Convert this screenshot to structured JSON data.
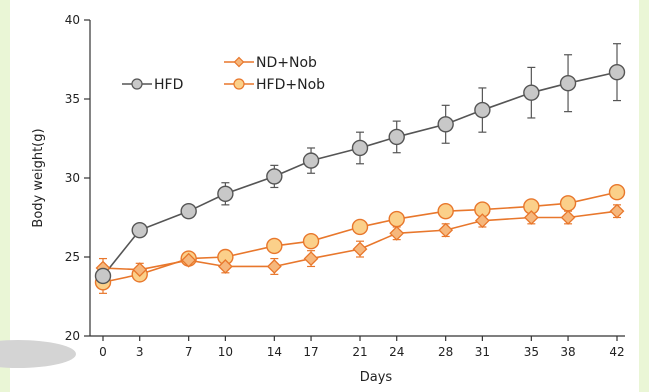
{
  "chart_data": {
    "type": "line",
    "xlabel": "Days",
    "ylabel": "Body weight(g)",
    "x": [
      0,
      3,
      7,
      10,
      14,
      17,
      21,
      24,
      28,
      31,
      35,
      38,
      42
    ],
    "xlim": [
      0,
      42
    ],
    "ylim": [
      20,
      40
    ],
    "yticks": [
      20,
      25,
      30,
      35,
      40
    ],
    "grid": false,
    "legend": [
      "HFD",
      "ND+Nob",
      "HFD+Nob"
    ],
    "series": [
      {
        "name": "HFD",
        "marker": "circle",
        "color": "#555555",
        "fill": "#c8c8c8",
        "values": [
          23.8,
          26.7,
          27.9,
          29.0,
          30.1,
          31.1,
          31.9,
          32.6,
          33.4,
          34.3,
          35.4,
          36.0,
          36.7
        ],
        "error": [
          0.3,
          0.3,
          0.3,
          0.7,
          0.7,
          0.8,
          1.0,
          1.0,
          1.2,
          1.4,
          1.6,
          1.8,
          1.8
        ]
      },
      {
        "name": "ND+Nob",
        "marker": "diamond",
        "color": "#e8772c",
        "fill": "#f6b77c",
        "values": [
          24.3,
          24.2,
          24.8,
          24.4,
          24.4,
          24.9,
          25.5,
          26.5,
          26.7,
          27.3,
          27.5,
          27.5,
          27.9
        ],
        "error": [
          0.6,
          0.4,
          0.3,
          0.4,
          0.5,
          0.5,
          0.5,
          0.4,
          0.4,
          0.4,
          0.4,
          0.4,
          0.4
        ]
      },
      {
        "name": "HFD+Nob",
        "marker": "circle",
        "color": "#e8772c",
        "fill": "#fbd08a",
        "values": [
          23.4,
          23.9,
          24.9,
          25.0,
          25.7,
          26.0,
          26.9,
          27.4,
          27.9,
          28.0,
          28.2,
          28.4,
          29.1
        ],
        "error": [
          0.7,
          0.3,
          0.3,
          0.3,
          0.3,
          0.3,
          0.3,
          0.3,
          0.3,
          0.3,
          0.3,
          0.3,
          0.3
        ]
      }
    ]
  }
}
